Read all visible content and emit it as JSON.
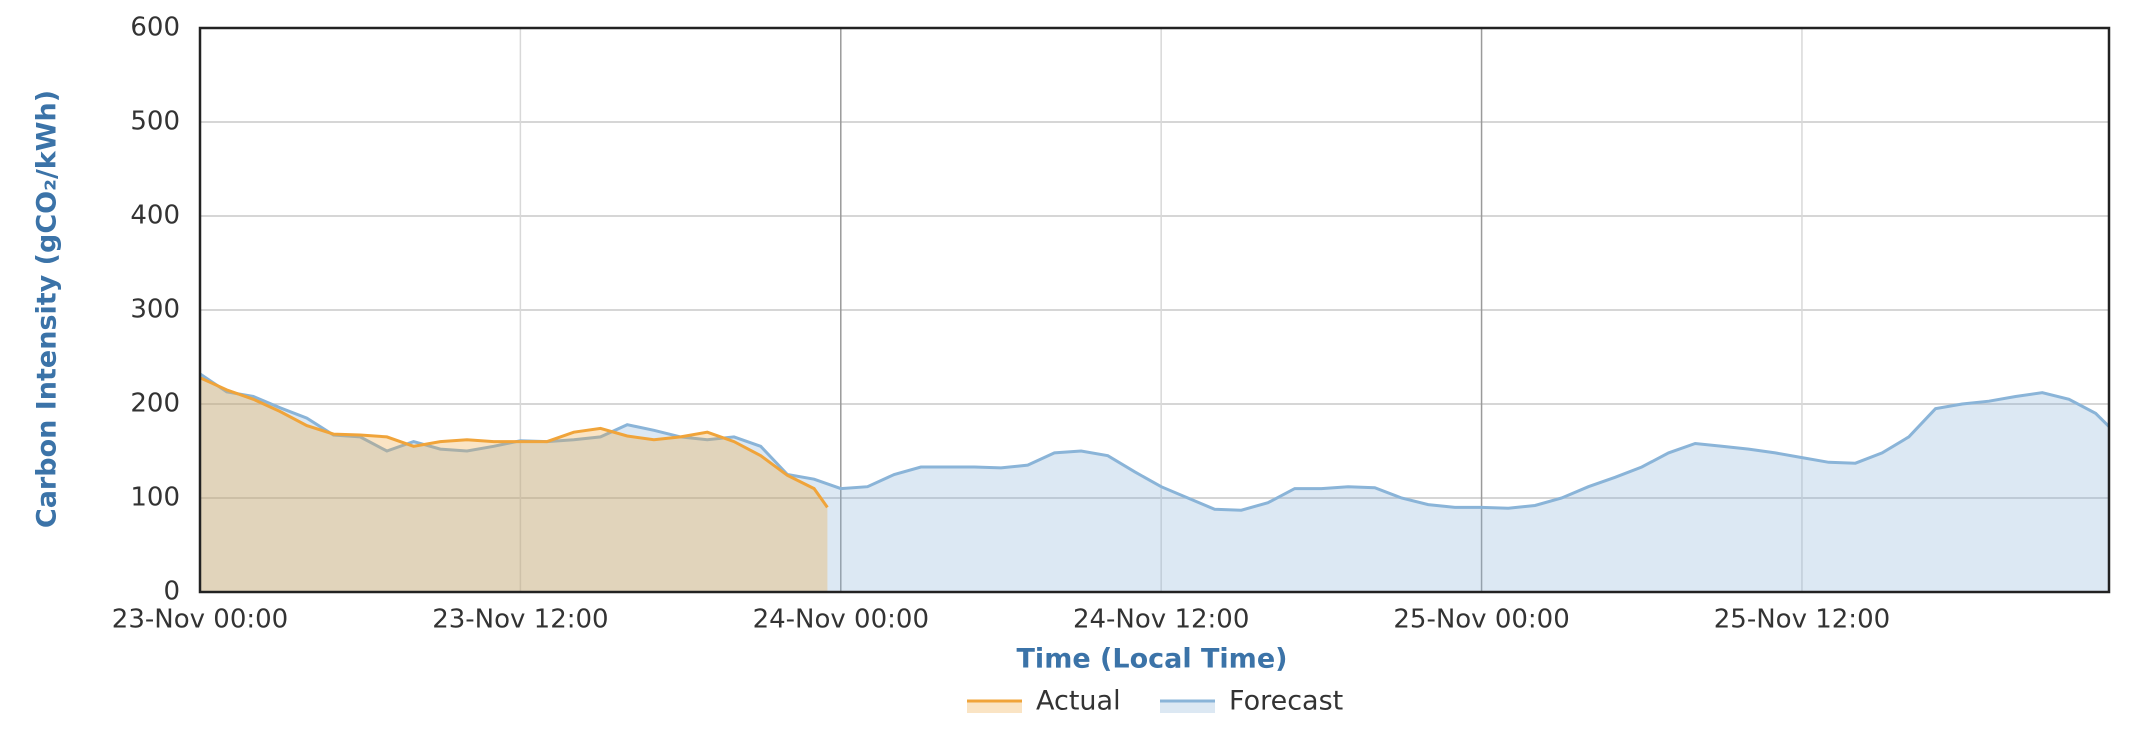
{
  "chart_data": {
    "type": "area",
    "ylabel": "Carbon Intensity (gCO₂/kWh)",
    "xlabel": "Time (Local Time)",
    "ylim": [
      0,
      600
    ],
    "yticks": [
      0,
      100,
      200,
      300,
      400,
      500,
      600
    ],
    "xlim": [
      "23-Nov 00:00",
      "25-Nov 23:30"
    ],
    "xticks": [
      "23-Nov 00:00",
      "23-Nov 12:00",
      "24-Nov 00:00",
      "24-Nov 12:00",
      "25-Nov 00:00",
      "25-Nov 12:00"
    ],
    "grid": true,
    "legend": "bottom",
    "series": [
      {
        "name": "Forecast",
        "color": "#8ab4d8",
        "x": [
          "23-Nov 00:00",
          "23-Nov 01:00",
          "23-Nov 02:00",
          "23-Nov 03:00",
          "23-Nov 04:00",
          "23-Nov 05:00",
          "23-Nov 06:00",
          "23-Nov 07:00",
          "23-Nov 08:00",
          "23-Nov 09:00",
          "23-Nov 10:00",
          "23-Nov 11:00",
          "23-Nov 12:00",
          "23-Nov 13:00",
          "23-Nov 14:00",
          "23-Nov 15:00",
          "23-Nov 16:00",
          "23-Nov 17:00",
          "23-Nov 18:00",
          "23-Nov 19:00",
          "23-Nov 20:00",
          "23-Nov 21:00",
          "23-Nov 22:00",
          "23-Nov 23:00",
          "24-Nov 00:00",
          "24-Nov 01:00",
          "24-Nov 02:00",
          "24-Nov 03:00",
          "24-Nov 04:00",
          "24-Nov 05:00",
          "24-Nov 06:00",
          "24-Nov 07:00",
          "24-Nov 08:00",
          "24-Nov 09:00",
          "24-Nov 10:00",
          "24-Nov 11:00",
          "24-Nov 12:00",
          "24-Nov 13:00",
          "24-Nov 14:00",
          "24-Nov 15:00",
          "24-Nov 16:00",
          "24-Nov 17:00",
          "24-Nov 18:00",
          "24-Nov 19:00",
          "24-Nov 20:00",
          "24-Nov 21:00",
          "24-Nov 22:00",
          "24-Nov 23:00",
          "25-Nov 00:00",
          "25-Nov 01:00",
          "25-Nov 02:00",
          "25-Nov 03:00",
          "25-Nov 04:00",
          "25-Nov 05:00",
          "25-Nov 06:00",
          "25-Nov 07:00",
          "25-Nov 08:00",
          "25-Nov 09:00",
          "25-Nov 10:00",
          "25-Nov 11:00",
          "25-Nov 12:00",
          "25-Nov 13:00",
          "25-Nov 14:00",
          "25-Nov 15:00",
          "25-Nov 16:00",
          "25-Nov 17:00",
          "25-Nov 18:00",
          "25-Nov 19:00",
          "25-Nov 20:00",
          "25-Nov 21:00",
          "25-Nov 22:00",
          "25-Nov 23:00",
          "25-Nov 23:30"
        ],
        "values": [
          232,
          213,
          208,
          196,
          185,
          167,
          165,
          150,
          160,
          152,
          150,
          155,
          161,
          160,
          162,
          165,
          178,
          172,
          165,
          162,
          165,
          155,
          125,
          120,
          110,
          112,
          125,
          133,
          133,
          133,
          132,
          135,
          148,
          150,
          145,
          128,
          112,
          100,
          88,
          87,
          95,
          110,
          110,
          112,
          111,
          100,
          93,
          90,
          90,
          89,
          92,
          100,
          112,
          122,
          133,
          148,
          158,
          155,
          152,
          148,
          143,
          138,
          137,
          148,
          165,
          195,
          200,
          203,
          208,
          212,
          205,
          190,
          176
        ]
      },
      {
        "name": "Actual",
        "color": "#f0a43a",
        "x": [
          "23-Nov 00:00",
          "23-Nov 01:00",
          "23-Nov 02:00",
          "23-Nov 03:00",
          "23-Nov 04:00",
          "23-Nov 05:00",
          "23-Nov 06:00",
          "23-Nov 07:00",
          "23-Nov 08:00",
          "23-Nov 09:00",
          "23-Nov 10:00",
          "23-Nov 11:00",
          "23-Nov 12:00",
          "23-Nov 13:00",
          "23-Nov 14:00",
          "23-Nov 15:00",
          "23-Nov 16:00",
          "23-Nov 17:00",
          "23-Nov 18:00",
          "23-Nov 19:00",
          "23-Nov 20:00",
          "23-Nov 21:00",
          "23-Nov 22:00",
          "23-Nov 23:00",
          "23-Nov 23:30"
        ],
        "values": [
          228,
          215,
          205,
          192,
          177,
          168,
          167,
          165,
          155,
          160,
          162,
          160,
          160,
          160,
          170,
          174,
          166,
          162,
          165,
          170,
          160,
          145,
          124,
          110,
          90
        ]
      }
    ]
  }
}
